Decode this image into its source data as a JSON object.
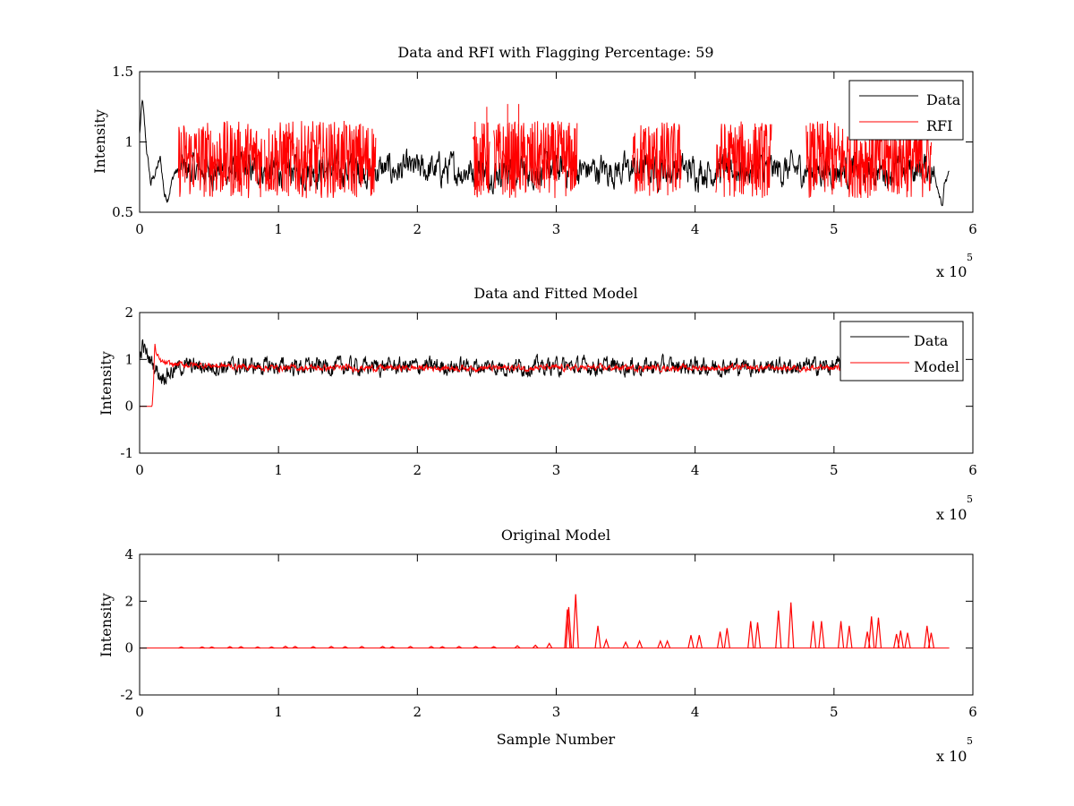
{
  "colors": {
    "data": "#000000",
    "rfi": "#ff0000",
    "model": "#ff0000",
    "axes": "#000000",
    "background": "#ffffff"
  },
  "charts": {
    "top": {
      "title": "Data and RFI with Flagging Percentage: 59",
      "ylabel": "Intensity",
      "x_exponent_text": "x 10",
      "x_exponent_power": "5",
      "xticks": [
        "0",
        "1",
        "2",
        "3",
        "4",
        "5",
        "6"
      ],
      "yticks": [
        "0.5",
        "1",
        "1.5"
      ],
      "legend": [
        "Data",
        "RFI"
      ]
    },
    "middle": {
      "title": "Data and Fitted Model",
      "ylabel": "Intensity",
      "x_exponent_text": "x 10",
      "x_exponent_power": "5",
      "xticks": [
        "0",
        "1",
        "2",
        "3",
        "4",
        "5",
        "6"
      ],
      "yticks": [
        "-1",
        "0",
        "1",
        "2"
      ],
      "legend": [
        "Data",
        "Model"
      ]
    },
    "bottom": {
      "title": "Original Model",
      "xlabel": "Sample Number",
      "ylabel": "Intensity",
      "x_exponent_text": "x 10",
      "x_exponent_power": "5",
      "xticks": [
        "0",
        "1",
        "2",
        "3",
        "4",
        "5",
        "6"
      ],
      "yticks": [
        "-2",
        "0",
        "2",
        "4"
      ]
    }
  },
  "chart_data": [
    {
      "type": "line",
      "title": "Data and RFI with Flagging Percentage: 59",
      "ylabel": "Intensity",
      "x_multiplier": 100000,
      "xlim": [
        0,
        6
      ],
      "ylim": [
        0.5,
        1.5
      ],
      "grid": false,
      "legend_position": "top-right",
      "x_range_of_data": [
        0,
        5.83
      ],
      "series": [
        {
          "name": "Data",
          "color": "#000000",
          "baseline": 0.8,
          "noise_amplitude": 0.12,
          "x": [
            0,
            0.02,
            0.05,
            0.08,
            0.12,
            0.15,
            0.18,
            0.2,
            0.25,
            0.3,
            0.5,
            1.0,
            1.5,
            2.0,
            2.5,
            3.0,
            3.5,
            4.0,
            4.5,
            5.0,
            5.5,
            5.7,
            5.75,
            5.78,
            5.8,
            5.83
          ],
          "y": [
            1.05,
            1.3,
            0.95,
            0.7,
            0.8,
            0.88,
            0.62,
            0.6,
            0.78,
            0.8,
            0.8,
            0.8,
            0.8,
            0.8,
            0.8,
            0.8,
            0.8,
            0.8,
            0.8,
            0.8,
            0.8,
            0.82,
            0.68,
            0.56,
            0.72,
            0.76
          ]
        },
        {
          "name": "RFI",
          "color": "#ff0000",
          "segments": [
            [
              0.28,
              0.88
            ],
            [
              0.9,
              1.7
            ],
            [
              2.4,
              2.52
            ],
            [
              2.55,
              3.15
            ],
            [
              3.55,
              3.9
            ],
            [
              4.15,
              4.55
            ],
            [
              4.8,
              5.7
            ]
          ],
          "range": [
            0.6,
            1.15
          ],
          "peaks": [
            {
              "x": 2.5,
              "y": 1.25
            },
            {
              "x": 2.65,
              "y": 1.27
            },
            {
              "x": 2.73,
              "y": 1.27
            }
          ]
        }
      ]
    },
    {
      "type": "line",
      "title": "Data and Fitted Model",
      "ylabel": "Intensity",
      "x_multiplier": 100000,
      "xlim": [
        0,
        6
      ],
      "ylim": [
        -1,
        2
      ],
      "grid": false,
      "legend_position": "top-right",
      "series": [
        {
          "name": "Data",
          "color": "#000000",
          "x": [
            0,
            0.02,
            0.05,
            0.1,
            0.15,
            0.2,
            0.3,
            1.0,
            2.0,
            3.0,
            4.0,
            5.0,
            5.83
          ],
          "y": [
            1.0,
            1.3,
            1.1,
            0.9,
            0.65,
            0.7,
            0.85,
            0.85,
            0.85,
            0.85,
            0.85,
            0.85,
            0.85
          ],
          "noise_amplitude": 0.15
        },
        {
          "name": "Model",
          "color": "#ff0000",
          "x": [
            0,
            0.09,
            0.1,
            0.11,
            0.12,
            0.15,
            0.2,
            1.0,
            2.0,
            3.0,
            4.0,
            5.0,
            5.83
          ],
          "y": [
            0.0,
            0.0,
            0.5,
            1.35,
            1.1,
            0.95,
            0.9,
            0.82,
            0.82,
            0.82,
            0.82,
            0.82,
            0.82
          ],
          "noise_amplitude": 0.06
        }
      ]
    },
    {
      "type": "line",
      "title": "Original Model",
      "xlabel": "Sample Number",
      "ylabel": "Intensity",
      "x_multiplier": 100000,
      "xlim": [
        0,
        6
      ],
      "ylim": [
        -2,
        4
      ],
      "grid": false,
      "series": [
        {
          "name": "Original Model",
          "color": "#ff0000",
          "baseline": 0.0,
          "x_range_of_data": [
            0,
            5.83
          ],
          "peaks": [
            {
              "x": 0.3,
              "y": 0.05
            },
            {
              "x": 0.45,
              "y": 0.05
            },
            {
              "x": 0.52,
              "y": 0.05
            },
            {
              "x": 0.65,
              "y": 0.06
            },
            {
              "x": 0.73,
              "y": 0.06
            },
            {
              "x": 0.85,
              "y": 0.05
            },
            {
              "x": 0.95,
              "y": 0.05
            },
            {
              "x": 1.05,
              "y": 0.08
            },
            {
              "x": 1.12,
              "y": 0.07
            },
            {
              "x": 1.25,
              "y": 0.06
            },
            {
              "x": 1.38,
              "y": 0.07
            },
            {
              "x": 1.48,
              "y": 0.06
            },
            {
              "x": 1.6,
              "y": 0.07
            },
            {
              "x": 1.75,
              "y": 0.07
            },
            {
              "x": 1.82,
              "y": 0.06
            },
            {
              "x": 1.95,
              "y": 0.07
            },
            {
              "x": 2.1,
              "y": 0.07
            },
            {
              "x": 2.18,
              "y": 0.06
            },
            {
              "x": 2.3,
              "y": 0.07
            },
            {
              "x": 2.42,
              "y": 0.07
            },
            {
              "x": 2.55,
              "y": 0.06
            },
            {
              "x": 2.72,
              "y": 0.1
            },
            {
              "x": 2.85,
              "y": 0.12
            },
            {
              "x": 2.95,
              "y": 0.2
            },
            {
              "x": 3.08,
              "y": 1.65
            },
            {
              "x": 3.09,
              "y": 1.75
            },
            {
              "x": 3.14,
              "y": 2.3
            },
            {
              "x": 3.3,
              "y": 0.95
            },
            {
              "x": 3.36,
              "y": 0.35
            },
            {
              "x": 3.5,
              "y": 0.25
            },
            {
              "x": 3.6,
              "y": 0.3
            },
            {
              "x": 3.75,
              "y": 0.3
            },
            {
              "x": 3.8,
              "y": 0.3
            },
            {
              "x": 3.97,
              "y": 0.55
            },
            {
              "x": 4.03,
              "y": 0.55
            },
            {
              "x": 4.18,
              "y": 0.7
            },
            {
              "x": 4.23,
              "y": 0.85
            },
            {
              "x": 4.4,
              "y": 1.15
            },
            {
              "x": 4.45,
              "y": 1.1
            },
            {
              "x": 4.6,
              "y": 1.6
            },
            {
              "x": 4.69,
              "y": 1.95
            },
            {
              "x": 4.85,
              "y": 1.15
            },
            {
              "x": 4.91,
              "y": 1.15
            },
            {
              "x": 5.05,
              "y": 1.15
            },
            {
              "x": 5.11,
              "y": 0.95
            },
            {
              "x": 5.24,
              "y": 0.7
            },
            {
              "x": 5.27,
              "y": 1.35
            },
            {
              "x": 5.32,
              "y": 1.3
            },
            {
              "x": 5.45,
              "y": 0.6
            },
            {
              "x": 5.48,
              "y": 0.75
            },
            {
              "x": 5.53,
              "y": 0.65
            },
            {
              "x": 5.67,
              "y": 0.95
            },
            {
              "x": 5.7,
              "y": 0.65
            }
          ]
        }
      ]
    }
  ]
}
